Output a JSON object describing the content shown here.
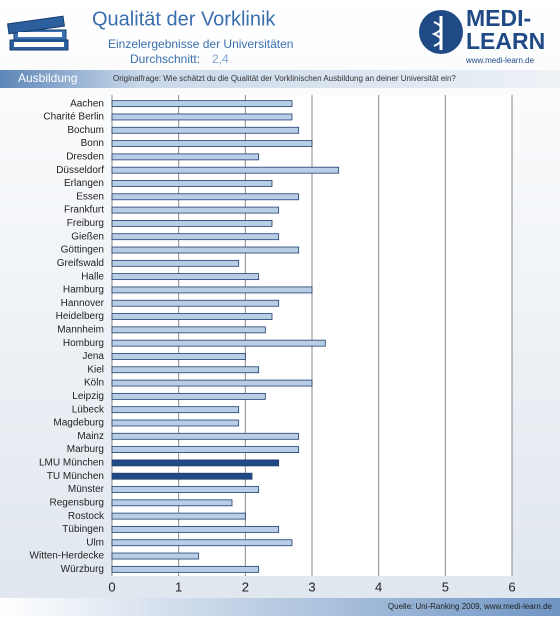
{
  "header": {
    "title": "Qualität der Vorklinik",
    "subtitle": "Einzelergebnisse der Universitäten",
    "average_label": "Durchschnitt:",
    "average_value": "2,4",
    "logo_top": "MEDI-",
    "logo_bottom": "LEARN",
    "logo_url": "www.medi-learn.de"
  },
  "band": {
    "section": "Ausbildung",
    "question": "Originalfrage: Wie schätzt du die Qualität der Vorklinischen Ausbildung an deiner Universität ein?"
  },
  "footer": {
    "source": "Quelle: Uni-Ranking 2009, www.medi-learn.de"
  },
  "chart_data": {
    "type": "hbar",
    "categories": [
      "Aachen",
      "Charité Berlin",
      "Bochum",
      "Bonn",
      "Dresden",
      "Düsseldorf",
      "Erlangen",
      "Essen",
      "Frankfurt",
      "Freiburg",
      "Gießen",
      "Göttingen",
      "Greifswald",
      "Halle",
      "Hamburg",
      "Hannover",
      "Heidelberg",
      "Mannheim",
      "Homburg",
      "Jena",
      "Kiel",
      "Köln",
      "Leipzig",
      "Lübeck",
      "Magdeburg",
      "Mainz",
      "Marburg",
      "LMU München",
      "TU München",
      "Münster",
      "Regensburg",
      "Rostock",
      "Tübingen",
      "Ulm",
      "Witten-Herdecke",
      "Würzburg"
    ],
    "values": [
      2.7,
      2.7,
      2.8,
      3.0,
      2.2,
      3.4,
      2.4,
      2.8,
      2.5,
      2.4,
      2.5,
      2.8,
      1.9,
      2.2,
      3.0,
      2.5,
      2.4,
      2.3,
      3.2,
      2.0,
      2.2,
      3.0,
      2.3,
      1.9,
      1.9,
      2.8,
      2.8,
      2.5,
      2.1,
      2.2,
      1.8,
      2.0,
      2.5,
      2.7,
      1.3,
      2.2
    ],
    "colors": [
      "#b8cde6",
      "#b8cde6",
      "#b8cde6",
      "#b8cde6",
      "#b8cde6",
      "#b8cde6",
      "#b8cde6",
      "#b8cde6",
      "#b8cde6",
      "#b8cde6",
      "#b8cde6",
      "#b8cde6",
      "#b8cde6",
      "#b8cde6",
      "#b8cde6",
      "#b8cde6",
      "#b8cde6",
      "#b8cde6",
      "#b8cde6",
      "#b8cde6",
      "#b8cde6",
      "#b8cde6",
      "#b8cde6",
      "#b8cde6",
      "#b8cde6",
      "#b8cde6",
      "#b8cde6",
      "#1f4a86",
      "#1f4a86",
      "#b8cde6",
      "#b8cde6",
      "#b8cde6",
      "#b8cde6",
      "#b8cde6",
      "#b8cde6",
      "#b8cde6"
    ],
    "xlim": [
      0,
      6
    ],
    "xticks": [
      0,
      1,
      2,
      3,
      4,
      5,
      6
    ],
    "grid": true
  }
}
